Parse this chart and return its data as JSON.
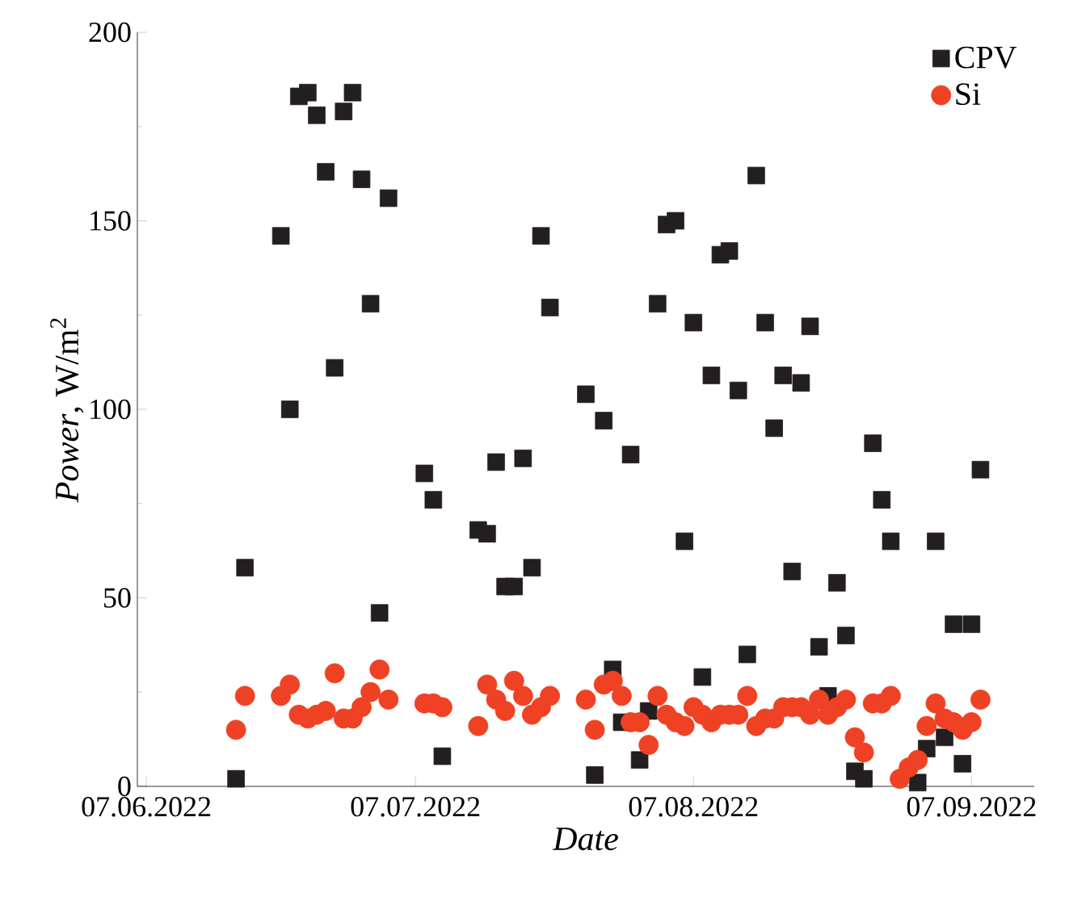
{
  "chart_data": {
    "type": "scatter",
    "xlabel": "Date",
    "ylabel": "*Power*, W/m$^{2}$",
    "legend": "top right",
    "xlim": [
      "2022-06-06",
      "2022-09-14"
    ],
    "ylim": [
      0,
      200
    ],
    "yticks": [
      0,
      50,
      100,
      150,
      200
    ],
    "xticks": [
      {
        "value": "2022-06-07",
        "label": "07.06.2022"
      },
      {
        "value": "2022-07-07",
        "label": "07.07.2022"
      },
      {
        "value": "2022-08-07",
        "label": "07.08.2022"
      },
      {
        "value": "2022-09-07",
        "label": "07.09.2022"
      }
    ],
    "series": [
      {
        "name": "CPV",
        "color": "#231f20",
        "marker": "square",
        "x": [
          "2022-06-17",
          "2022-06-18",
          "2022-06-22",
          "2022-06-23",
          "2022-06-24",
          "2022-06-25",
          "2022-06-26",
          "2022-06-27",
          "2022-06-28",
          "2022-06-29",
          "2022-06-30",
          "2022-07-01",
          "2022-07-02",
          "2022-07-03",
          "2022-07-04",
          "2022-07-08",
          "2022-07-09",
          "2022-07-10",
          "2022-07-14",
          "2022-07-15",
          "2022-07-16",
          "2022-07-17",
          "2022-07-18",
          "2022-07-19",
          "2022-07-20",
          "2022-07-21",
          "2022-07-22",
          "2022-07-26",
          "2022-07-27",
          "2022-07-28",
          "2022-07-29",
          "2022-07-30",
          "2022-07-31",
          "2022-08-01",
          "2022-08-02",
          "2022-08-03",
          "2022-08-04",
          "2022-08-05",
          "2022-08-06",
          "2022-08-07",
          "2022-08-08",
          "2022-08-09",
          "2022-08-10",
          "2022-08-11",
          "2022-08-12",
          "2022-08-13",
          "2022-08-14",
          "2022-08-15",
          "2022-08-16",
          "2022-08-17",
          "2022-08-18",
          "2022-08-19",
          "2022-08-20",
          "2022-08-21",
          "2022-08-22",
          "2022-08-23",
          "2022-08-24",
          "2022-08-25",
          "2022-08-26",
          "2022-08-27",
          "2022-08-28",
          "2022-08-29",
          "2022-09-01",
          "2022-09-02",
          "2022-09-03",
          "2022-09-04",
          "2022-09-05",
          "2022-09-06",
          "2022-09-07",
          "2022-09-08"
        ],
        "values": [
          2,
          58,
          146,
          100,
          183,
          184,
          178,
          163,
          111,
          179,
          184,
          161,
          128,
          46,
          156,
          83,
          76,
          8,
          68,
          67,
          86,
          53,
          53,
          87,
          58,
          146,
          127,
          104,
          3,
          97,
          31,
          17,
          88,
          7,
          20,
          128,
          149,
          150,
          65,
          123,
          29,
          109,
          141,
          142,
          105,
          35,
          162,
          123,
          95,
          109,
          57,
          107,
          122,
          37,
          24,
          54,
          40,
          4,
          2,
          91,
          76,
          65,
          1,
          10,
          65,
          13,
          43,
          6,
          43,
          84
        ]
      },
      {
        "name": "Si",
        "color": "#ef4123",
        "marker": "circle",
        "x": [
          "2022-06-17",
          "2022-06-18",
          "2022-06-22",
          "2022-06-23",
          "2022-06-24",
          "2022-06-25",
          "2022-06-26",
          "2022-06-27",
          "2022-06-28",
          "2022-06-29",
          "2022-06-30",
          "2022-07-01",
          "2022-07-02",
          "2022-07-03",
          "2022-07-04",
          "2022-07-08",
          "2022-07-09",
          "2022-07-10",
          "2022-07-14",
          "2022-07-15",
          "2022-07-16",
          "2022-07-17",
          "2022-07-18",
          "2022-07-19",
          "2022-07-20",
          "2022-07-21",
          "2022-07-22",
          "2022-07-26",
          "2022-07-27",
          "2022-07-28",
          "2022-07-29",
          "2022-07-30",
          "2022-07-31",
          "2022-08-01",
          "2022-08-02",
          "2022-08-03",
          "2022-08-04",
          "2022-08-05",
          "2022-08-06",
          "2022-08-07",
          "2022-08-08",
          "2022-08-09",
          "2022-08-10",
          "2022-08-11",
          "2022-08-12",
          "2022-08-13",
          "2022-08-14",
          "2022-08-15",
          "2022-08-16",
          "2022-08-17",
          "2022-08-18",
          "2022-08-19",
          "2022-08-20",
          "2022-08-21",
          "2022-08-22",
          "2022-08-23",
          "2022-08-24",
          "2022-08-25",
          "2022-08-26",
          "2022-08-27",
          "2022-08-28",
          "2022-08-29",
          "2022-08-30",
          "2022-08-31",
          "2022-09-01",
          "2022-09-02",
          "2022-09-03",
          "2022-09-04",
          "2022-09-05",
          "2022-09-06",
          "2022-09-07",
          "2022-09-08"
        ],
        "values": [
          15,
          24,
          24,
          27,
          19,
          18,
          19,
          20,
          30,
          18,
          18,
          21,
          25,
          31,
          23,
          22,
          22,
          21,
          16,
          27,
          23,
          20,
          28,
          24,
          19,
          21,
          24,
          23,
          15,
          27,
          28,
          24,
          17,
          17,
          11,
          24,
          19,
          17,
          16,
          21,
          19,
          17,
          19,
          19,
          19,
          24,
          16,
          18,
          18,
          21,
          21,
          21,
          19,
          23,
          19,
          21,
          23,
          13,
          9,
          22,
          22,
          24,
          2,
          5,
          7,
          16,
          22,
          18,
          17,
          15,
          17,
          23
        ]
      }
    ]
  }
}
